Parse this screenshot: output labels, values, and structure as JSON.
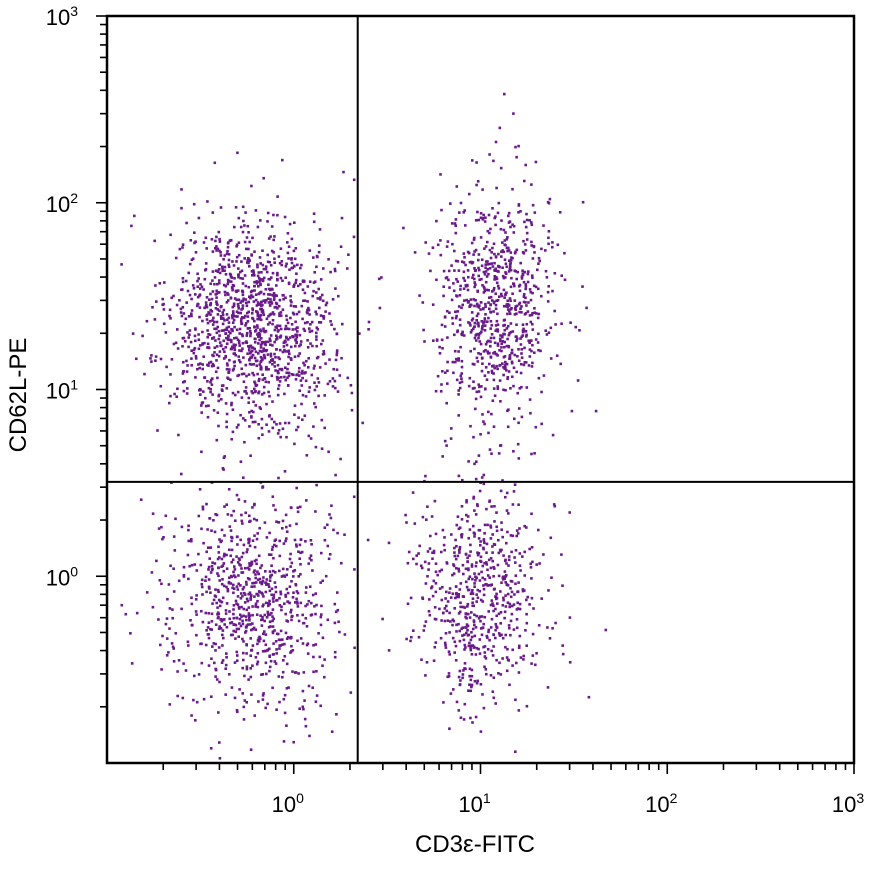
{
  "chart_data": {
    "type": "scatter",
    "title": "",
    "xlabel": "CD3ε-FITC",
    "ylabel": "CD62L-PE",
    "xscale": "log",
    "yscale": "log",
    "xlim": [
      0.1,
      1000
    ],
    "ylim": [
      0.1,
      1000
    ],
    "x_ticks": [
      {
        "base": "10",
        "exp": "0",
        "value": 1
      },
      {
        "base": "10",
        "exp": "1",
        "value": 10
      },
      {
        "base": "10",
        "exp": "2",
        "value": 100
      },
      {
        "base": "10",
        "exp": "3",
        "value": 1000
      }
    ],
    "y_ticks": [
      {
        "base": "10",
        "exp": "0",
        "value": 1
      },
      {
        "base": "10",
        "exp": "1",
        "value": 10
      },
      {
        "base": "10",
        "exp": "2",
        "value": 100
      },
      {
        "base": "10",
        "exp": "3",
        "value": 1000
      }
    ],
    "gates": {
      "x": 2.2,
      "y": 3.2
    },
    "grid": false,
    "point_color": "#6a1b8a",
    "populations": [
      {
        "x_center": 0.6,
        "y_center": 22,
        "x_spread_decades": 0.22,
        "y_spread_decades": 0.28,
        "count": 1300
      },
      {
        "x_center": 0.6,
        "y_center": 0.75,
        "x_spread_decades": 0.22,
        "y_spread_decades": 0.3,
        "count": 850
      },
      {
        "x_center": 12,
        "y_center": 28,
        "x_spread_decades": 0.16,
        "y_spread_decades": 0.3,
        "count": 800
      },
      {
        "x_center": 10,
        "y_center": 0.8,
        "x_spread_decades": 0.17,
        "y_spread_decades": 0.3,
        "count": 650
      }
    ],
    "outliers": [
      {
        "x": 15,
        "y": 300
      },
      {
        "x": 0.14,
        "y": 85
      },
      {
        "x": 0.12,
        "y": 0.7
      }
    ]
  }
}
